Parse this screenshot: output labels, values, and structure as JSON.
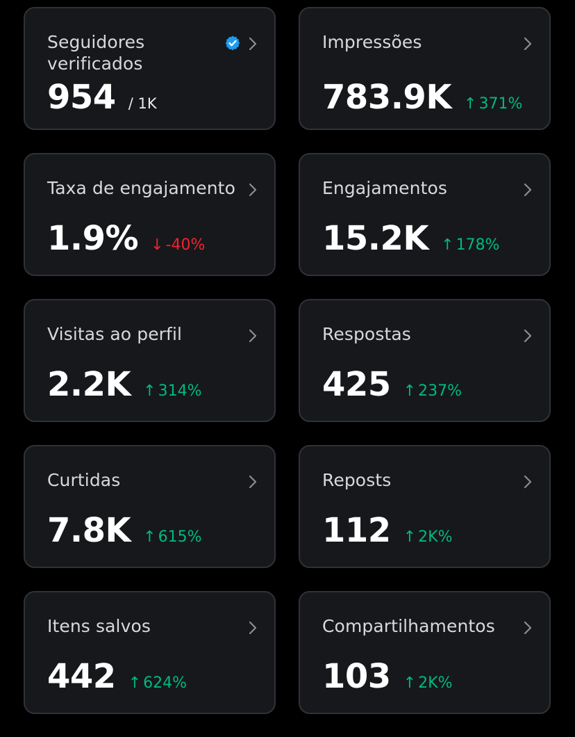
{
  "colors": {
    "background": "#000000",
    "card": "#16181c",
    "card_border": "#2f3336",
    "positive": "#00ba7c",
    "negative": "#f4212e",
    "verified": "#1d9bf0"
  },
  "metrics": [
    {
      "label": "Seguidores verificados",
      "value": "954",
      "suffix": "/ 1K",
      "icon": "verified-badge-icon"
    },
    {
      "label": "Impressões",
      "value": "783.9K",
      "delta": "371%",
      "direction": "up"
    },
    {
      "label": "Taxa de engajamento",
      "value": "1.9%",
      "delta": "-40%",
      "direction": "down"
    },
    {
      "label": "Engajamentos",
      "value": "15.2K",
      "delta": "178%",
      "direction": "up"
    },
    {
      "label": "Visitas ao perfil",
      "value": "2.2K",
      "delta": "314%",
      "direction": "up"
    },
    {
      "label": "Respostas",
      "value": "425",
      "delta": "237%",
      "direction": "up"
    },
    {
      "label": "Curtidas",
      "value": "7.8K",
      "delta": "615%",
      "direction": "up"
    },
    {
      "label": "Reposts",
      "value": "112",
      "delta": "2K%",
      "direction": "up"
    },
    {
      "label": "Itens salvos",
      "value": "442",
      "delta": "624%",
      "direction": "up"
    },
    {
      "label": "Compartilhamentos",
      "value": "103",
      "delta": "2K%",
      "direction": "up"
    }
  ]
}
